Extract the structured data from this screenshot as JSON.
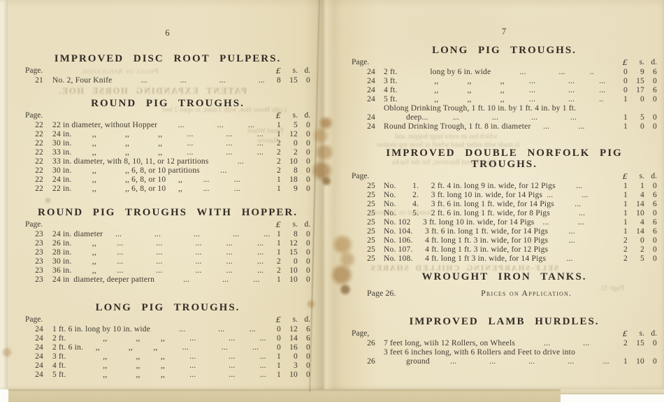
{
  "document": {
    "kind": "printed catalogue price list, two-page spread"
  },
  "columns": {
    "pound": "£",
    "shillings": "s.",
    "pence": "d."
  },
  "left_page": {
    "number": "6",
    "sections": [
      {
        "title": "IMPROVED DISC ROOT PULPERS.",
        "page_label": "Page.",
        "rows": [
          {
            "page": "21",
            "desc": "No. 2, Four Knife    ...    ...    ...    ...",
            "l": "8",
            "s": "15",
            "d": "0"
          }
        ]
      },
      {
        "title": "ROUND PIG TROUGHS.",
        "page_label": "Page.",
        "rows": [
          {
            "page": "22",
            "desc": "22 in diameter, without Hopper   ...    ...   ...",
            "l": "1",
            "s": "5",
            "d": "0"
          },
          {
            "page": "22",
            "desc": "24 in.   ,,    ,,    ,,   ...    ...   ...",
            "l": "1",
            "s": "12",
            "d": "0"
          },
          {
            "page": "22",
            "desc": "30 in.   ,,    ,,    ,,   ...    ...   ...",
            "l": "2",
            "s": "0",
            "d": "0"
          },
          {
            "page": "22",
            "desc": "33 in.   ,,    ,,    ,,   ...    ...   ...",
            "l": "2",
            "s": "2",
            "d": "0"
          },
          {
            "page": "22",
            "desc": "33 in. diameter, with 8, 10, 11, or 12 partitions    ...",
            "l": "2",
            "s": "10",
            "d": "0"
          },
          {
            "page": "22",
            "desc": "30 in.   ,,    ,, 6, 8, or 10 partitions   ...",
            "l": "2",
            "s": "8",
            "d": "0"
          },
          {
            "page": "22",
            "desc": "24 in.   ,,    ,, 6, 8, or 10  ,,   ...   ...",
            "l": "1",
            "s": "18",
            "d": "0"
          },
          {
            "page": "22",
            "desc": "22 in.   ,,    ,, 6, 8, or 10  ,,   ...   ...",
            "l": "1",
            "s": "9",
            "d": "0"
          }
        ]
      },
      {
        "title": "ROUND PIG TROUGHS WITH HOPPER.",
        "page_label": "Page.",
        "rows": [
          {
            "page": "23",
            "desc": "24 in. diameter  ...    ...    ...    ...   ...",
            "l": "1",
            "s": "8",
            "d": "0"
          },
          {
            "page": "23",
            "desc": "26 in.   ,,   ...    ...    ...   ...   ...",
            "l": "1",
            "s": "12",
            "d": "0"
          },
          {
            "page": "23",
            "desc": "28 in.   ,,   ...    ...    ...   ...   ...",
            "l": "1",
            "s": "15",
            "d": "0"
          },
          {
            "page": "23",
            "desc": "30 in.   ,,   ...    ...    ...   ...   ...",
            "l": "2",
            "s": "0",
            "d": "0"
          },
          {
            "page": "23",
            "desc": "36 in.   ,,   ...    ...    ...   ...   ...",
            "l": "2",
            "s": "10",
            "d": "0"
          },
          {
            "page": "23",
            "desc": "24 in diameter, deeper pattern    ...    ...   ...",
            "l": "1",
            "s": "10",
            "d": "0"
          }
        ]
      },
      {
        "title": "LONG PIG TROUGHS.",
        "page_label": "Page.",
        "rows": [
          {
            "page": "24",
            "desc": "1 ft. 6 in. long by 10 in. wide    ...    ...   ...",
            "l": "0",
            "s": "12",
            "d": "6"
          },
          {
            "page": "24",
            "desc": "2 ft.     ,,    ,,   ,,   ...    ...   ...",
            "l": "0",
            "s": "14",
            "d": "6"
          },
          {
            "page": "24",
            "desc": "2 ft. 6 in.  ,,    ,,   ,,   ...    ...   ...",
            "l": "0",
            "s": "16",
            "d": "0"
          },
          {
            "page": "24",
            "desc": "3 ft.     ,,    ,,   ,,   ...    ...   ...",
            "l": "1",
            "s": "0",
            "d": "0"
          },
          {
            "page": "24",
            "desc": "4 ft.     ,,    ,,   ,,   ...    ...   ...",
            "l": "1",
            "s": "3",
            "d": "0"
          },
          {
            "page": "24",
            "desc": "5 ft.     ,,    ,,   ,,   ...    ...   ...",
            "l": "1",
            "s": "10",
            "d": "0"
          }
        ]
      }
    ]
  },
  "right_page": {
    "number": "7",
    "sections": [
      {
        "title": "LONG PIG TROUGHS.",
        "page_label": "Page.",
        "rows": [
          {
            "page": "24",
            "desc": "2 ft.    long by 6 in. wide    ...    ...   ..",
            "l": "0",
            "s": "9",
            "d": "6"
          },
          {
            "page": "24",
            "desc": "3 ft.     ,,    ,,    ,,   ...    ...   ...",
            "l": "0",
            "s": "15",
            "d": "0"
          },
          {
            "page": "24",
            "desc": "4 ft.     ,,    ,,    ,,   ...    ...   ...",
            "l": "0",
            "s": "17",
            "d": "6"
          },
          {
            "page": "24",
            "desc": "5 ft.     ,,    ,,    ,,   ...    ...   ..",
            "l": "1",
            "s": "0",
            "d": "0"
          },
          {
            "page": "24",
            "desc": "Oblong Drinking Trough, 1 ft. 10 in. by 1 ft. 4 in. by 1 ft.",
            "desc2": "deep...   ...    ...    ...    ...",
            "l": "1",
            "s": "5",
            "d": "0"
          },
          {
            "page": "24",
            "desc": "Round Drinking Trough, 1 ft. 8 in. diameter  ...    ...",
            "l": "1",
            "s": "0",
            "d": "0"
          }
        ]
      },
      {
        "title": "IMPROVED DOUBLE NORFOLK PIG TROUGHS.",
        "page_label": "Page.",
        "rows": [
          {
            "page": "25",
            "desc": "No.   1.  2 ft. 4 in. long 9 in. wide, for 12 Pigs   ...",
            "l": "1",
            "s": "1",
            "d": "0"
          },
          {
            "page": "25",
            "desc": "No.   2.  3 ft. long 10 in. wide, for 14 Pigs ...    ...",
            "l": "1",
            "s": "4",
            "d": "6"
          },
          {
            "page": "25",
            "desc": "No.   4.  3 ft. 6 in. long 1 ft. wide, for 14 Pigs   ...",
            "l": "1",
            "s": "14",
            "d": "6"
          },
          {
            "page": "25",
            "desc": "No.   5.  2 ft. 6 in. long 1 ft. wide, for 8 Pigs    ...",
            "l": "1",
            "s": "10",
            "d": "0"
          },
          {
            "page": "25",
            "desc": "No. 102  3 ft. long 10 in. wide, for 14 Pigs  ...    ...",
            "l": "1",
            "s": "4",
            "d": "6"
          },
          {
            "page": "25",
            "desc": "No. 104.  3 ft. 6 in. long 1 ft. wide, for 14 Pigs   ...",
            "l": "1",
            "s": "14",
            "d": "6"
          },
          {
            "page": "25",
            "desc": "No. 106.  4 ft. long 1 ft. 3 in. wide, for 10 Pigs   ...",
            "l": "2",
            "s": "0",
            "d": "0"
          },
          {
            "page": "25",
            "desc": "No. 107.  4 ft. long 1 ft. 3 in. wide, for 12 Pigs",
            "l": "2",
            "s": "2",
            "d": "0"
          },
          {
            "page": "25",
            "desc": "No. 108.  4 ft. long 1 ft 3 in. wide, for 14 Pigs   ...",
            "l": "2",
            "s": "5",
            "d": "0"
          }
        ]
      },
      {
        "title": "WROUGHT IRON TANKS.",
        "note": {
          "left": "Page 26.",
          "text": "Prices on Application."
        }
      },
      {
        "title": "IMPROVED LAMB HURDLES.",
        "page_label": "Page,",
        "rows": [
          {
            "page": "26",
            "desc": "7 feet long, wiih 12 Rollers, on Wheels    ...    ...",
            "l": "2",
            "s": "15",
            "d": "0"
          },
          {
            "page": "26",
            "desc": "3 feet 6 inches long, with 6 Rollers and Feet to drive into",
            "desc2": "ground   ...    ...    ...    ...    ...",
            "l": "1",
            "s": "10",
            "d": "0"
          }
        ]
      }
    ]
  },
  "bleed_through": {
    "left": [
      {
        "text": "Prices on Application.",
        "bold": false
      },
      {
        "text": "PATENT EXPANDING HORSE HOE.",
        "bold": true
      },
      {
        "text": "Light Horse Hoe, with 3 tines, to open 2 feet",
        "bold": false
      },
      {
        "text": "Fixed Wheel",
        "bold": false
      },
      {
        "text": "Harrow",
        "bold": false
      }
    ],
    "right": [
      {
        "text": "which has an extra large hopper, and",
        "bold": false
      },
      {
        "text": "is made with either hand wheel or lever top motion",
        "bold": false
      },
      {
        "text": "With Bored Receiver, for the Sacks",
        "bold": false
      },
      {
        "text": "Standard on 2 Wheels",
        "bold": false
      },
      {
        "text": "SELF-SHARPENING CHILLED SHARES",
        "bold": true
      },
      {
        "text": "Page 31.",
        "bold": false
      }
    ]
  },
  "colors": {
    "paper": "#eadfc1",
    "paper_shadow": "#d9cda7",
    "ink": "#3e382e",
    "title_ink": "#332d26",
    "stain": "#96621f",
    "background_white": "#fcfcf9"
  }
}
